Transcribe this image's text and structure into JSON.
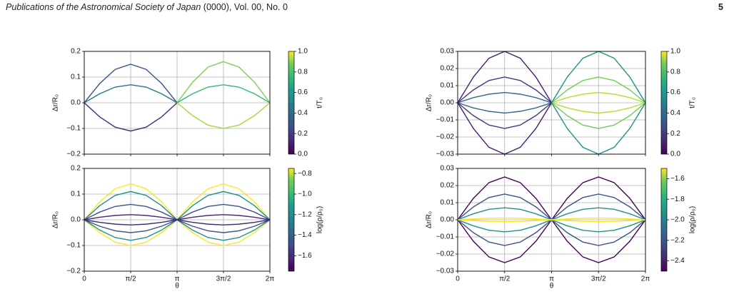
{
  "header": {
    "journal": "Publications of the Astronomical Society of Japan",
    "issue": " (0000), Vol. 00, No. 0",
    "page": "5"
  },
  "chart_data": [
    {
      "type": "line",
      "ylabel": "Δr/R₀",
      "x": [
        0,
        0.524,
        1.047,
        1.571,
        2.094,
        2.618,
        3.142,
        3.665,
        4.189,
        4.712,
        5.236,
        5.76,
        6.283
      ],
      "xlim": [
        0,
        6.283
      ],
      "ylim": [
        -0.2,
        0.2
      ],
      "grid": true,
      "yticks": [
        {
          "value": -0.2,
          "label": "−0.2"
        },
        {
          "value": -0.1,
          "label": "−0.1"
        },
        {
          "value": 0,
          "label": "0.0"
        },
        0.1,
        0.2
      ],
      "colorbar": {
        "label": "t/T₀",
        "colormap": "viridis",
        "clim": [
          0,
          1
        ],
        "ticks": [
          {
            "value": 0,
            "label": "0.0"
          },
          0.2,
          0.4,
          0.6,
          0.8,
          {
            "value": 1,
            "label": "1.0"
          }
        ]
      },
      "series": [
        {
          "color": "#3b528b",
          "values": [
            0,
            0.075,
            0.13,
            0.15,
            0.13,
            0.075,
            0,
            null,
            null,
            null,
            null,
            null,
            null
          ]
        },
        {
          "color": "#2c728e",
          "values": [
            0,
            0.035,
            0.061,
            0.07,
            0.061,
            0.035,
            0,
            null,
            null,
            null,
            null,
            null,
            null
          ]
        },
        {
          "color": "#472c7a",
          "values": [
            0,
            -0.055,
            -0.095,
            -0.11,
            -0.095,
            -0.055,
            0,
            null,
            null,
            null,
            null,
            null,
            null
          ]
        },
        {
          "color": "#7ad151",
          "values": [
            null,
            null,
            null,
            null,
            null,
            null,
            0,
            0.08,
            0.139,
            0.16,
            0.139,
            0.08,
            0
          ]
        },
        {
          "color": "#35b779",
          "values": [
            null,
            null,
            null,
            null,
            null,
            null,
            0,
            0.035,
            0.061,
            0.07,
            0.061,
            0.035,
            0
          ]
        },
        {
          "color": "#a0da39",
          "values": [
            null,
            null,
            null,
            null,
            null,
            null,
            0,
            -0.05,
            -0.087,
            -0.1,
            -0.087,
            -0.05,
            0
          ]
        }
      ]
    },
    {
      "type": "line",
      "ylabel": "Δr/R₀",
      "xlabel": "θ",
      "x": [
        0,
        0.524,
        1.047,
        1.571,
        2.094,
        2.618,
        3.142,
        3.665,
        4.189,
        4.712,
        5.236,
        5.76,
        6.283
      ],
      "xlim": [
        0,
        6.283
      ],
      "ylim": [
        -0.2,
        0.2
      ],
      "grid": true,
      "xticks": [
        0,
        {
          "value": 1.571,
          "label": "π/2"
        },
        {
          "value": 3.142,
          "label": "π"
        },
        {
          "value": 4.712,
          "label": "3π/2"
        },
        {
          "value": 6.283,
          "label": "2π"
        }
      ],
      "yticks": [
        {
          "value": -0.2,
          "label": "−0.2"
        },
        {
          "value": -0.1,
          "label": "−0.1"
        },
        {
          "value": 0,
          "label": "0.0"
        },
        0.1,
        0.2
      ],
      "colorbar": {
        "label": "log(ρ/ρ₀)",
        "colormap": "viridis",
        "clim": [
          -1.75,
          -0.75
        ],
        "ticks": [
          {
            "value": -1.6,
            "label": "−1.6"
          },
          {
            "value": -1.4,
            "label": "−1.4"
          },
          {
            "value": -1.2,
            "label": "−1.2"
          },
          {
            "value": -1.0,
            "label": "−1.0"
          },
          {
            "value": -0.8,
            "label": "−0.8"
          }
        ]
      },
      "series": [
        {
          "color": "#fde725",
          "values": [
            0,
            0.07,
            0.121,
            0.14,
            0.121,
            0.07,
            0,
            0.07,
            0.121,
            0.14,
            0.121,
            0.07,
            0
          ]
        },
        {
          "color": "#fde725",
          "values": [
            0,
            -0.05,
            -0.087,
            -0.1,
            -0.087,
            -0.05,
            0,
            -0.05,
            -0.087,
            -0.1,
            -0.087,
            -0.05,
            0
          ]
        },
        {
          "color": "#21918c",
          "values": [
            0,
            0.055,
            0.095,
            0.11,
            0.095,
            0.055,
            0,
            0.055,
            0.095,
            0.11,
            0.095,
            0.055,
            0
          ]
        },
        {
          "color": "#21918c",
          "values": [
            0,
            -0.04,
            -0.069,
            -0.08,
            -0.069,
            -0.04,
            0,
            -0.04,
            -0.069,
            -0.08,
            -0.069,
            -0.04,
            0
          ]
        },
        {
          "color": "#3b528b",
          "values": [
            0,
            0.03,
            0.052,
            0.06,
            0.052,
            0.03,
            0,
            0.03,
            0.052,
            0.06,
            0.052,
            0.03,
            0
          ]
        },
        {
          "color": "#3b528b",
          "values": [
            0,
            -0.025,
            -0.043,
            -0.05,
            -0.043,
            -0.025,
            0,
            -0.025,
            -0.043,
            -0.05,
            -0.043,
            -0.025,
            0
          ]
        },
        {
          "color": "#482878",
          "values": [
            0,
            0.01,
            0.017,
            0.02,
            0.017,
            0.01,
            0,
            0.01,
            0.017,
            0.02,
            0.017,
            0.01,
            0
          ]
        },
        {
          "color": "#482878",
          "values": [
            0,
            -0.01,
            -0.017,
            -0.02,
            -0.017,
            -0.01,
            0,
            -0.01,
            -0.017,
            -0.02,
            -0.017,
            -0.01,
            0
          ]
        }
      ]
    },
    {
      "type": "line",
      "ylabel": "Δr/R₀",
      "x": [
        0,
        0.524,
        1.047,
        1.571,
        2.094,
        2.618,
        3.142,
        3.665,
        4.189,
        4.712,
        5.236,
        5.76,
        6.283
      ],
      "xlim": [
        0,
        6.283
      ],
      "ylim": [
        -0.03,
        0.03
      ],
      "grid": true,
      "yticks": [
        {
          "value": -0.03,
          "label": "−0.03"
        },
        {
          "value": -0.02,
          "label": "−0.02"
        },
        {
          "value": -0.01,
          "label": "−0.01"
        },
        {
          "value": 0,
          "label": "0.00"
        },
        0.01,
        0.02,
        0.03
      ],
      "colorbar": {
        "label": "t/T₀",
        "colormap": "viridis",
        "clim": [
          0,
          1
        ],
        "ticks": [
          {
            "value": 0,
            "label": "0.0"
          },
          0.2,
          0.4,
          0.6,
          0.8,
          {
            "value": 1,
            "label": "1.0"
          }
        ]
      },
      "series": [
        {
          "color": "#31688e",
          "values": [
            0,
            0.003,
            0.005,
            0.006,
            0.005,
            0.003,
            0,
            null,
            null,
            null,
            null,
            null,
            null
          ]
        },
        {
          "color": "#31688e",
          "values": [
            0,
            -0.003,
            -0.005,
            -0.006,
            -0.005,
            -0.003,
            0,
            null,
            null,
            null,
            null,
            null,
            null
          ]
        },
        {
          "color": "#443983",
          "values": [
            0,
            0.0075,
            0.013,
            0.015,
            0.013,
            0.0075,
            0,
            null,
            null,
            null,
            null,
            null,
            null
          ]
        },
        {
          "color": "#443983",
          "values": [
            0,
            -0.0075,
            -0.013,
            -0.015,
            -0.013,
            -0.0075,
            0,
            null,
            null,
            null,
            null,
            null,
            null
          ]
        },
        {
          "color": "#481f70",
          "values": [
            0,
            0.015,
            0.026,
            0.03,
            0.026,
            0.015,
            0,
            null,
            null,
            null,
            null,
            null,
            null
          ]
        },
        {
          "color": "#481f70",
          "values": [
            0,
            -0.015,
            -0.026,
            -0.03,
            -0.026,
            -0.015,
            0,
            null,
            null,
            null,
            null,
            null,
            null
          ]
        },
        {
          "color": "#b5de2b",
          "values": [
            null,
            null,
            null,
            null,
            null,
            null,
            0,
            0.003,
            0.005,
            0.006,
            0.005,
            0.003,
            0
          ]
        },
        {
          "color": "#b5de2b",
          "values": [
            null,
            null,
            null,
            null,
            null,
            null,
            0,
            -0.003,
            -0.005,
            -0.006,
            -0.005,
            -0.003,
            0
          ]
        },
        {
          "color": "#6ece58",
          "values": [
            null,
            null,
            null,
            null,
            null,
            null,
            0,
            0.0075,
            0.013,
            0.015,
            0.013,
            0.0075,
            0
          ]
        },
        {
          "color": "#6ece58",
          "values": [
            null,
            null,
            null,
            null,
            null,
            null,
            0,
            -0.0075,
            -0.013,
            -0.015,
            -0.013,
            -0.0075,
            0
          ]
        },
        {
          "color": "#21918c",
          "values": [
            null,
            null,
            null,
            null,
            null,
            null,
            0,
            0.015,
            0.026,
            0.03,
            0.026,
            0.015,
            0
          ]
        },
        {
          "color": "#21918c",
          "values": [
            null,
            null,
            null,
            null,
            null,
            null,
            0,
            -0.015,
            -0.026,
            -0.03,
            -0.026,
            -0.015,
            0
          ]
        }
      ]
    },
    {
      "type": "line",
      "ylabel": "Δr/R₀",
      "xlabel": "θ",
      "x": [
        0,
        0.524,
        1.047,
        1.571,
        2.094,
        2.618,
        3.142,
        3.665,
        4.189,
        4.712,
        5.236,
        5.76,
        6.283
      ],
      "xlim": [
        0,
        6.283
      ],
      "ylim": [
        -0.03,
        0.03
      ],
      "grid": true,
      "xticks": [
        0,
        {
          "value": 1.571,
          "label": "π/2"
        },
        {
          "value": 3.142,
          "label": "π"
        },
        {
          "value": 4.712,
          "label": "3π/2"
        },
        {
          "value": 6.283,
          "label": "2π"
        }
      ],
      "yticks": [
        {
          "value": -0.03,
          "label": "−0.03"
        },
        {
          "value": -0.02,
          "label": "−0.02"
        },
        {
          "value": -0.01,
          "label": "−0.01"
        },
        {
          "value": 0,
          "label": "0.00"
        },
        0.01,
        0.02,
        0.03
      ],
      "colorbar": {
        "label": "log(ρ/ρ₀)",
        "colormap": "viridis",
        "clim": [
          -2.5,
          -1.5
        ],
        "ticks": [
          {
            "value": -2.4,
            "label": "−2.4"
          },
          {
            "value": -2.2,
            "label": "−2.2"
          },
          {
            "value": -2.0,
            "label": "−2.0"
          },
          {
            "value": -1.8,
            "label": "−1.8"
          },
          {
            "value": -1.6,
            "label": "−1.6"
          }
        ]
      },
      "series": [
        {
          "color": "#440154",
          "values": [
            0,
            0.0125,
            0.0217,
            0.025,
            0.0217,
            0.0125,
            0,
            0.0125,
            0.0217,
            0.025,
            0.0217,
            0.0125,
            0
          ]
        },
        {
          "color": "#440154",
          "values": [
            0,
            -0.0125,
            -0.0217,
            -0.025,
            -0.0217,
            -0.0125,
            0,
            -0.0125,
            -0.0217,
            -0.025,
            -0.0217,
            -0.0125,
            0
          ]
        },
        {
          "color": "#3b528b",
          "values": [
            0,
            0.0075,
            0.013,
            0.015,
            0.013,
            0.0075,
            0,
            0.0075,
            0.013,
            0.015,
            0.013,
            0.0075,
            0
          ]
        },
        {
          "color": "#3b528b",
          "values": [
            0,
            -0.0075,
            -0.013,
            -0.015,
            -0.013,
            -0.0075,
            0,
            -0.0075,
            -0.013,
            -0.015,
            -0.013,
            -0.0075,
            0
          ]
        },
        {
          "color": "#21918c",
          "values": [
            0,
            0.0035,
            0.0061,
            0.007,
            0.0061,
            0.0035,
            0,
            0.0035,
            0.0061,
            0.007,
            0.0061,
            0.0035,
            0
          ]
        },
        {
          "color": "#21918c",
          "values": [
            0,
            -0.0035,
            -0.0061,
            -0.007,
            -0.0061,
            -0.0035,
            0,
            -0.0035,
            -0.0061,
            -0.007,
            -0.0061,
            -0.0035,
            0
          ]
        },
        {
          "color": "#fde725",
          "values": [
            0,
            0.0005,
            0.0009,
            0.001,
            0.0009,
            0.0005,
            0,
            0.0005,
            0.0009,
            0.001,
            0.0009,
            0.0005,
            0
          ]
        },
        {
          "color": "#fde725",
          "values": [
            0,
            -0.0005,
            -0.0009,
            -0.001,
            -0.0009,
            -0.0005,
            0,
            -0.0005,
            -0.0009,
            -0.001,
            -0.0009,
            -0.0005,
            0
          ]
        }
      ]
    }
  ]
}
